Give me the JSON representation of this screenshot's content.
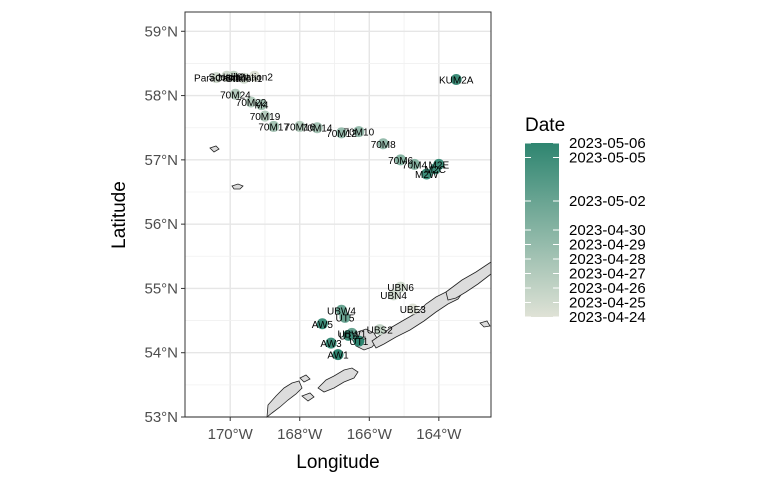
{
  "chart_data": {
    "type": "scatter",
    "xlabel": "Longitude",
    "ylabel": "Latitude",
    "xlim": [
      -171.3,
      -162.5
    ],
    "ylim": [
      53.0,
      59.3
    ],
    "x_ticks": [
      -170,
      -168,
      -166,
      -164
    ],
    "x_tick_labels": [
      "170°W",
      "168°W",
      "166°W",
      "164°W"
    ],
    "y_ticks": [
      53,
      54,
      55,
      56,
      57,
      58,
      59
    ],
    "y_tick_labels": [
      "53°N",
      "54°N",
      "55°N",
      "56°N",
      "57°N",
      "58°N",
      "59°N"
    ],
    "grid": true,
    "legend": {
      "title": "Date",
      "position": "right",
      "color_low": "#dfe2d6",
      "color_high": "#2e8570",
      "range": [
        "2023-04-24",
        "2023-05-06"
      ],
      "labels": [
        "2023-05-06",
        "2023-05-05",
        "2023-05-02",
        "2023-04-30",
        "2023-04-29",
        "2023-04-28",
        "2023-04-27",
        "2023-04-26",
        "2023-04-25",
        "2023-04-24"
      ]
    },
    "points": [
      {
        "label": "KUM2A",
        "lon": -163.5,
        "lat": 58.25,
        "date": "2023-05-05"
      },
      {
        "label": "70M24",
        "lon": -169.85,
        "lat": 58.02,
        "date": "2023-04-27"
      },
      {
        "label": "70M22",
        "lon": -169.4,
        "lat": 57.9,
        "date": "2023-04-27"
      },
      {
        "label": "M4",
        "lon": -169.1,
        "lat": 57.86,
        "date": "2023-04-28"
      },
      {
        "label": "70M19",
        "lon": -169.0,
        "lat": 57.68,
        "date": "2023-04-27"
      },
      {
        "label": "70M17",
        "lon": -168.75,
        "lat": 57.52,
        "date": "2023-04-28"
      },
      {
        "label": "70M16",
        "lon": -168.0,
        "lat": 57.52,
        "date": "2023-04-27"
      },
      {
        "label": "70M14",
        "lon": -167.5,
        "lat": 57.5,
        "date": "2023-04-28"
      },
      {
        "label": "70M12",
        "lon": -166.8,
        "lat": 57.42,
        "date": "2023-04-29"
      },
      {
        "label": "70M10",
        "lon": -166.3,
        "lat": 57.44,
        "date": "2023-04-29"
      },
      {
        "label": "70M8",
        "lon": -165.6,
        "lat": 57.25,
        "date": "2023-04-29"
      },
      {
        "label": "70M6",
        "lon": -165.1,
        "lat": 57.0,
        "date": "2023-04-30"
      },
      {
        "label": "70M4",
        "lon": -164.7,
        "lat": 56.93,
        "date": "2023-04-30"
      },
      {
        "label": "M2E",
        "lon": -164.0,
        "lat": 56.93,
        "date": "2023-05-05"
      },
      {
        "label": "M2C",
        "lon": -164.1,
        "lat": 56.86,
        "date": "2023-05-05"
      },
      {
        "label": "M2W",
        "lon": -164.35,
        "lat": 56.78,
        "date": "2023-05-05"
      },
      {
        "label": "Scotch2",
        "lon": -170.1,
        "lat": 58.3,
        "date": "2023-04-25"
      },
      {
        "label": "Halibut",
        "lon": -169.9,
        "lat": 58.3,
        "date": "2023-04-26"
      },
      {
        "label": "ParaCaim",
        "lon": -170.4,
        "lat": 58.28,
        "date": "2023-04-25"
      },
      {
        "label": "Station1",
        "lon": -169.6,
        "lat": 58.27,
        "date": "2023-04-25"
      },
      {
        "label": "Station2",
        "lon": -169.3,
        "lat": 58.3,
        "date": "2023-04-24"
      },
      {
        "label": "UBN6",
        "lon": -165.1,
        "lat": 55.02,
        "date": "2023-04-25"
      },
      {
        "label": "UBN4",
        "lon": -165.3,
        "lat": 54.9,
        "date": "2023-04-25"
      },
      {
        "label": "UBE3",
        "lon": -164.75,
        "lat": 54.68,
        "date": "2023-04-24"
      },
      {
        "label": "UBW4",
        "lon": -166.8,
        "lat": 54.66,
        "date": "2023-05-02"
      },
      {
        "label": "UT5",
        "lon": -166.7,
        "lat": 54.55,
        "date": "2023-05-02"
      },
      {
        "label": "AW5",
        "lon": -167.35,
        "lat": 54.45,
        "date": "2023-05-05"
      },
      {
        "label": "UBS2",
        "lon": -165.7,
        "lat": 54.36,
        "date": "2023-04-26"
      },
      {
        "label": "UBW1",
        "lon": -166.5,
        "lat": 54.3,
        "date": "2023-05-02"
      },
      {
        "label": "UT3",
        "lon": -166.6,
        "lat": 54.27,
        "date": "2023-05-05"
      },
      {
        "label": "UT1",
        "lon": -166.3,
        "lat": 54.18,
        "date": "2023-05-06"
      },
      {
        "label": "AW3",
        "lon": -167.1,
        "lat": 54.15,
        "date": "2023-05-05"
      },
      {
        "label": "AW1",
        "lon": -166.9,
        "lat": 53.97,
        "date": "2023-05-06"
      }
    ]
  }
}
